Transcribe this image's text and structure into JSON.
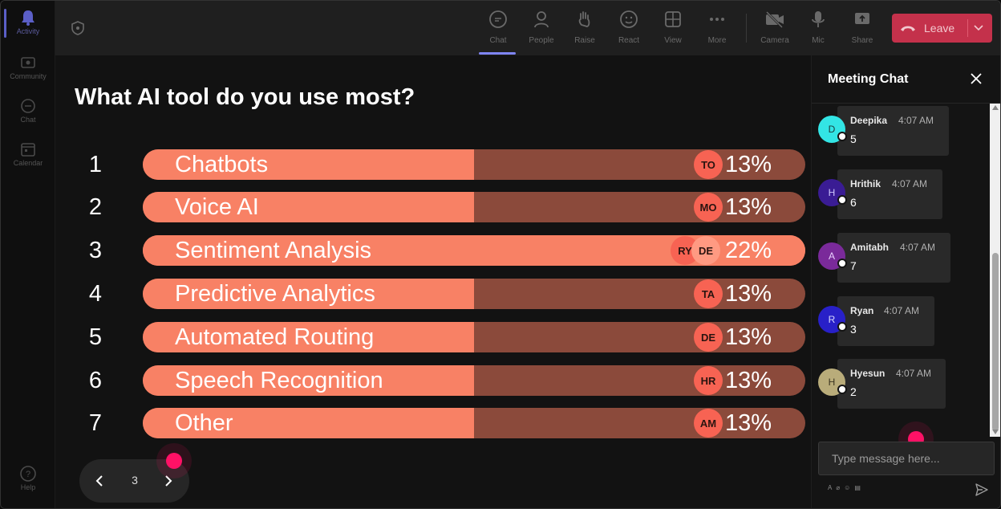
{
  "rail": {
    "items": [
      {
        "label": "Activity",
        "icon": "bell-icon",
        "active": true
      },
      {
        "label": "Community",
        "icon": "community-icon"
      },
      {
        "label": "Chat",
        "icon": "chat-icon"
      },
      {
        "label": "Calendar",
        "icon": "calendar-icon"
      }
    ],
    "help_label": "Help"
  },
  "toolbar": {
    "chat": "Chat",
    "people": "People",
    "raise": "Raise",
    "react": "React",
    "view": "View",
    "more": "More",
    "camera": "Camera",
    "mic": "Mic",
    "share": "Share",
    "leave": "Leave"
  },
  "poll": {
    "question": "What AI tool do you use most?",
    "options": [
      {
        "rank": "1",
        "label": "Chatbots",
        "percent": "13%",
        "avatars": [
          "TO"
        ]
      },
      {
        "rank": "2",
        "label": "Voice AI",
        "percent": "13%",
        "avatars": [
          "MO"
        ]
      },
      {
        "rank": "3",
        "label": "Sentiment Analysis",
        "percent": "22%",
        "avatars": [
          "RY",
          "DE"
        ]
      },
      {
        "rank": "4",
        "label": "Predictive Analytics",
        "percent": "13%",
        "avatars": [
          "TA"
        ]
      },
      {
        "rank": "5",
        "label": "Automated Routing",
        "percent": "13%",
        "avatars": [
          "DE"
        ]
      },
      {
        "rank": "6",
        "label": "Speech Recognition",
        "percent": "13%",
        "avatars": [
          "HR"
        ]
      },
      {
        "rank": "7",
        "label": "Other",
        "percent": "13%",
        "avatars": [
          "AM"
        ]
      }
    ],
    "pager": {
      "page": "3"
    }
  },
  "chat": {
    "title": "Meeting Chat",
    "messages": [
      {
        "initial": "D",
        "name": "Deepika",
        "time": "4:07 AM",
        "text": "5",
        "color": "#33e5e5",
        "text_color": "#1a3a3a"
      },
      {
        "initial": "H",
        "name": "Hrithik",
        "time": "4:07 AM",
        "text": "6",
        "color": "#3a1c94",
        "text_color": "#d0c8ff"
      },
      {
        "initial": "A",
        "name": "Amitabh",
        "time": "4:07 AM",
        "text": "7",
        "color": "#7a2a9a",
        "text_color": "#ead0ff"
      },
      {
        "initial": "R",
        "name": "Ryan",
        "time": "4:07 AM",
        "text": "3",
        "color": "#2820c8",
        "text_color": "#d8d8ff"
      },
      {
        "initial": "H",
        "name": "Hyesun",
        "time": "4:07 AM",
        "text": "2",
        "color": "#b9ac7a",
        "text_color": "#3a3420"
      }
    ],
    "compose_placeholder": "Type message here...",
    "tools": [
      "A",
      "⌀",
      "☺",
      "▤"
    ]
  },
  "colors": {
    "bar_fill": "#f88165",
    "bar_track": "#8b4a3b",
    "avatar": "#f76353",
    "leave": "#c4314b",
    "accent": "#7f85f5",
    "pointer": "#ff1166"
  }
}
